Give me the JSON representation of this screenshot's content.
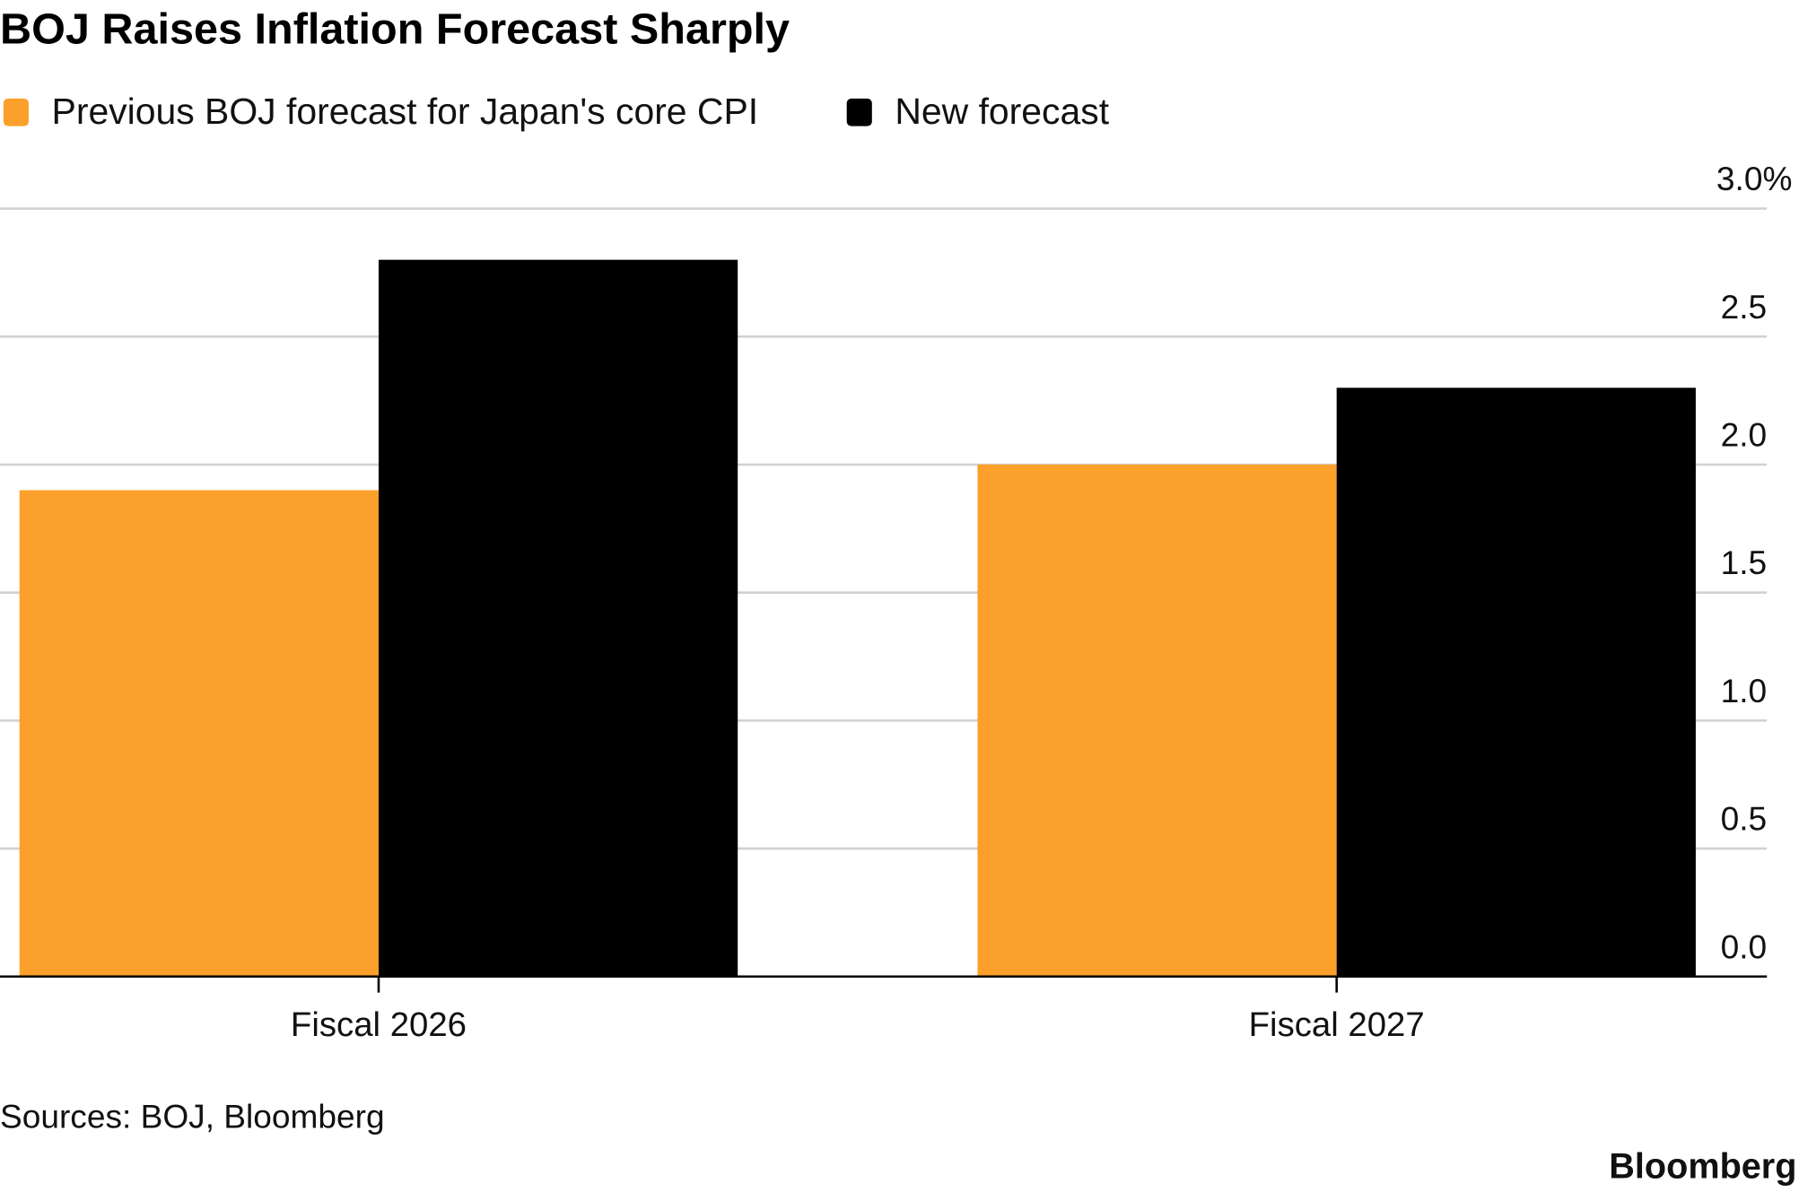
{
  "chart_data": {
    "type": "bar",
    "title": "BOJ Raises Inflation Forecast Sharply",
    "categories": [
      "Fiscal 2026",
      "Fiscal 2027"
    ],
    "series": [
      {
        "name": "Previous BOJ forecast for Japan's core CPI",
        "color": "#FBA02A",
        "values": [
          1.9,
          2.0
        ]
      },
      {
        "name": "New forecast",
        "color": "#000000",
        "values": [
          2.8,
          2.3
        ]
      }
    ],
    "xlabel": "",
    "ylabel": "",
    "ylim": [
      0,
      3.0
    ],
    "yticks": [
      0,
      0.5,
      1.0,
      1.5,
      2.0,
      2.5,
      3.0
    ],
    "ytick_labels": [
      "0.0",
      "0.5",
      "1.0",
      "1.5",
      "2.0",
      "2.5",
      "3.0%"
    ],
    "y_axis_position": "right",
    "grid": true,
    "legend_position": "top-left"
  },
  "footer": {
    "source": "Sources: BOJ, Bloomberg",
    "brand": "Bloomberg"
  }
}
